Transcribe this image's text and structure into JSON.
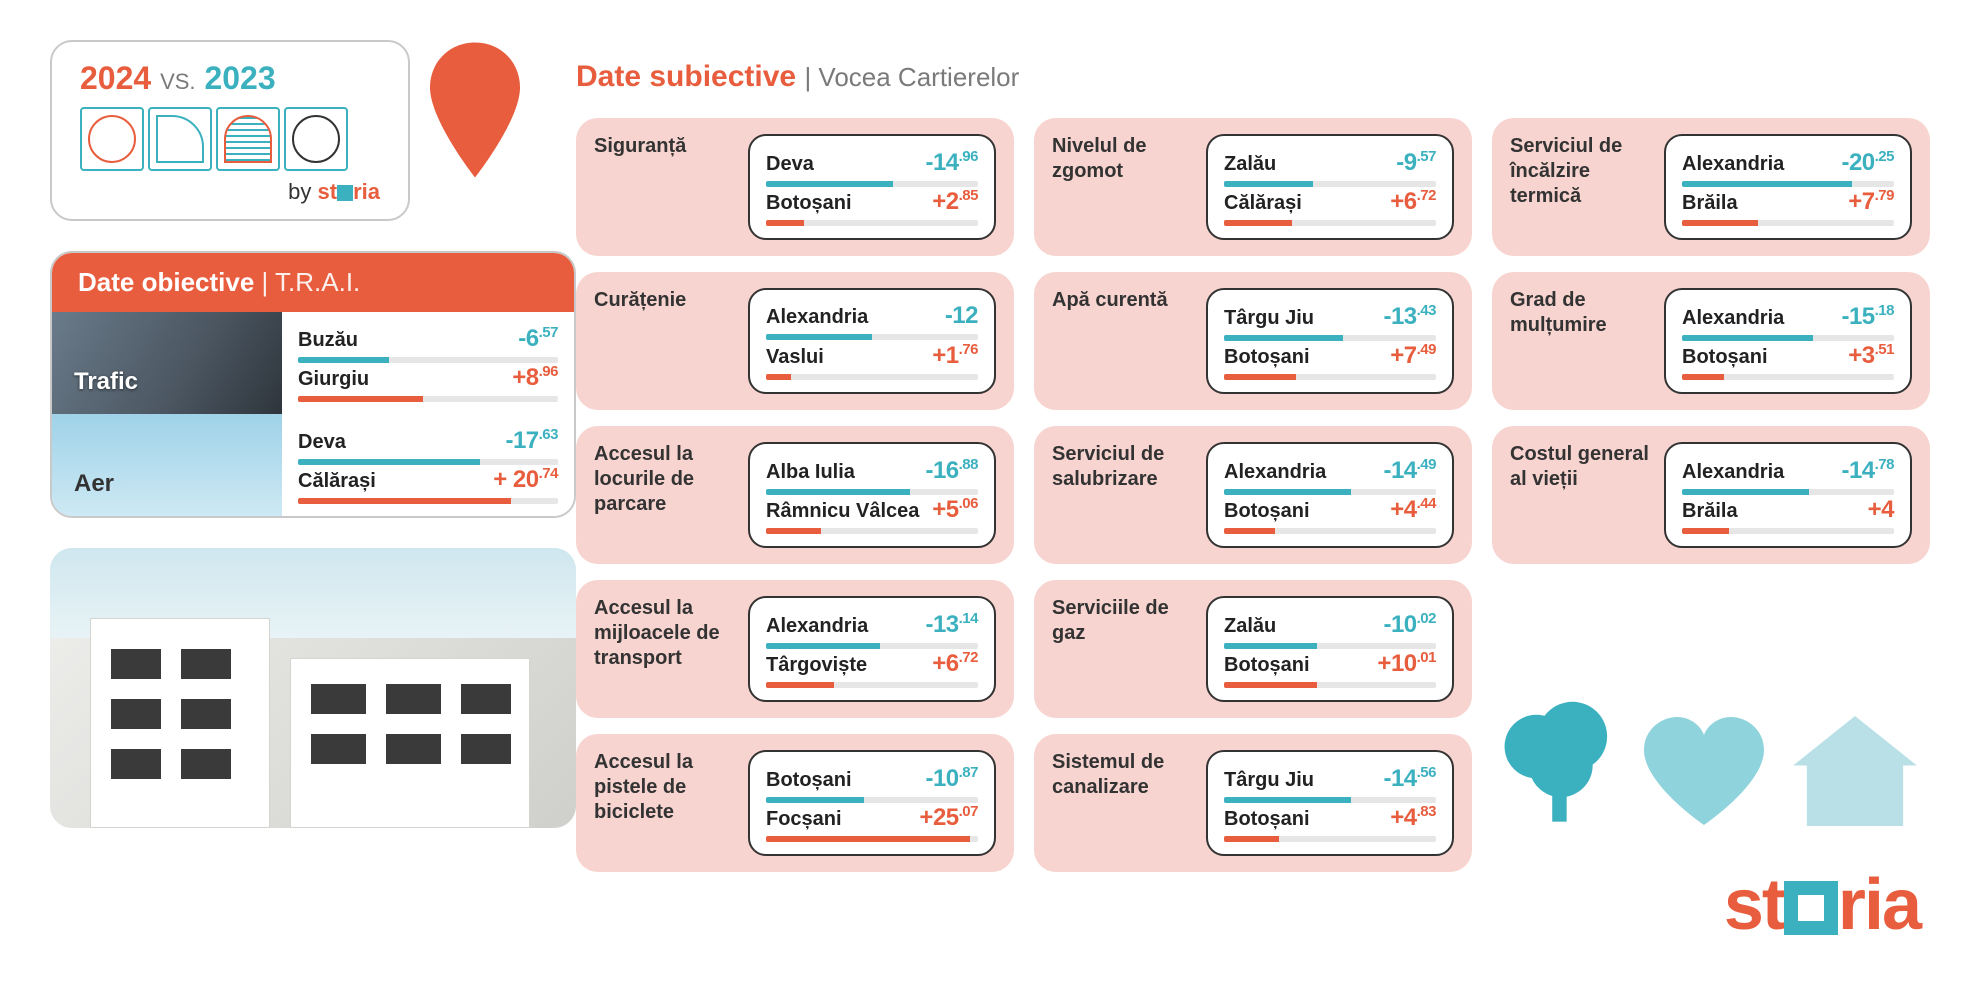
{
  "header": {
    "year_left": "2024",
    "vs": "VS.",
    "year_right": "2023",
    "by": "by",
    "brand": "storia"
  },
  "objective": {
    "title": "Date obiective",
    "sub": "| T.R.A.I.",
    "rows": [
      {
        "label": "Trafic",
        "neg": {
          "city": "Buzău",
          "int": "-6",
          "dec": ".57",
          "pct": 35
        },
        "pos": {
          "city": "Giurgiu",
          "int": "+8",
          "dec": ".96",
          "pct": 48
        }
      },
      {
        "label": "Aer",
        "neg": {
          "city": "Deva",
          "int": "-17",
          "dec": ".63",
          "pct": 70
        },
        "pos": {
          "city": "Călărași",
          "int": "+ 20",
          "dec": ".74",
          "pct": 82
        }
      }
    ]
  },
  "subjective": {
    "title": "Date subiective",
    "sub": "| Vocea Cartierelor",
    "cards": [
      {
        "label": "Siguranță",
        "neg": {
          "city": "Deva",
          "int": "-14",
          "dec": ".96",
          "pct": 60
        },
        "pos": {
          "city": "Botoșani",
          "int": "+2",
          "dec": ".85",
          "pct": 18
        }
      },
      {
        "label": "Nivelul de zgomot",
        "neg": {
          "city": "Zalău",
          "int": "-9",
          "dec": ".57",
          "pct": 42
        },
        "pos": {
          "city": "Călărași",
          "int": "+6",
          "dec": ".72",
          "pct": 32
        }
      },
      {
        "label": "Serviciul de încălzire termică",
        "neg": {
          "city": "Alexandria",
          "int": "-20",
          "dec": ".25",
          "pct": 80
        },
        "pos": {
          "city": "Brăila",
          "int": "+7",
          "dec": ".79",
          "pct": 36
        }
      },
      {
        "label": "Curățenie",
        "neg": {
          "city": "Alexandria",
          "int": "-12",
          "dec": "",
          "pct": 50
        },
        "pos": {
          "city": "Vaslui",
          "int": "+1",
          "dec": ".76",
          "pct": 12
        }
      },
      {
        "label": "Apă curentă",
        "neg": {
          "city": "Târgu Jiu",
          "int": "-13",
          "dec": ".43",
          "pct": 56
        },
        "pos": {
          "city": "Botoșani",
          "int": "+7",
          "dec": ".49",
          "pct": 34
        }
      },
      {
        "label": "Grad de mulțumire",
        "neg": {
          "city": "Alexandria",
          "int": "-15",
          "dec": ".18",
          "pct": 62
        },
        "pos": {
          "city": "Botoșani",
          "int": "+3",
          "dec": ".51",
          "pct": 20
        }
      },
      {
        "label": "Accesul la locurile de parcare",
        "neg": {
          "city": "Alba Iulia",
          "int": "-16",
          "dec": ".88",
          "pct": 68
        },
        "pos": {
          "city": "Râmnicu Vâlcea",
          "int": "+5",
          "dec": ".06",
          "pct": 26
        }
      },
      {
        "label": "Serviciul de salubrizare",
        "neg": {
          "city": "Alexandria",
          "int": "-14",
          "dec": ".49",
          "pct": 60
        },
        "pos": {
          "city": "Botoșani",
          "int": "+4",
          "dec": ".44",
          "pct": 24
        }
      },
      {
        "label": "Costul general al vieții",
        "neg": {
          "city": "Alexandria",
          "int": "-14",
          "dec": ".78",
          "pct": 60
        },
        "pos": {
          "city": "Brăila",
          "int": "+4",
          "dec": "",
          "pct": 22
        }
      },
      {
        "label": "Accesul la mijloacele de transport",
        "neg": {
          "city": "Alexandria",
          "int": "-13",
          "dec": ".14",
          "pct": 54
        },
        "pos": {
          "city": "Târgoviște",
          "int": "+6",
          "dec": ".72",
          "pct": 32
        }
      },
      {
        "label": "Serviciile de gaz",
        "neg": {
          "city": "Zalău",
          "int": "-10",
          "dec": ".02",
          "pct": 44
        },
        "pos": {
          "city": "Botoșani",
          "int": "+10",
          "dec": ".01",
          "pct": 44
        }
      },
      {
        "label": "",
        "empty": true
      },
      {
        "label": "Accesul la pistele de biciclete",
        "neg": {
          "city": "Botoșani",
          "int": "-10",
          "dec": ".87",
          "pct": 46
        },
        "pos": {
          "city": "Focșani",
          "int": "+25",
          "dec": ".07",
          "pct": 96
        }
      },
      {
        "label": "Sistemul de canalizare",
        "neg": {
          "city": "Târgu Jiu",
          "int": "-14",
          "dec": ".56",
          "pct": 60
        },
        "pos": {
          "city": "Botoșani",
          "int": "+4",
          "dec": ".83",
          "pct": 26
        }
      },
      {
        "label": "",
        "empty": true
      }
    ]
  },
  "colors": {
    "orange": "#e85d3d",
    "teal": "#3bb1c0",
    "teal_light": "#8fd3dc",
    "pink_bg": "#f7d4cf",
    "gray_border": "#c9c9c9",
    "text": "#333333"
  }
}
